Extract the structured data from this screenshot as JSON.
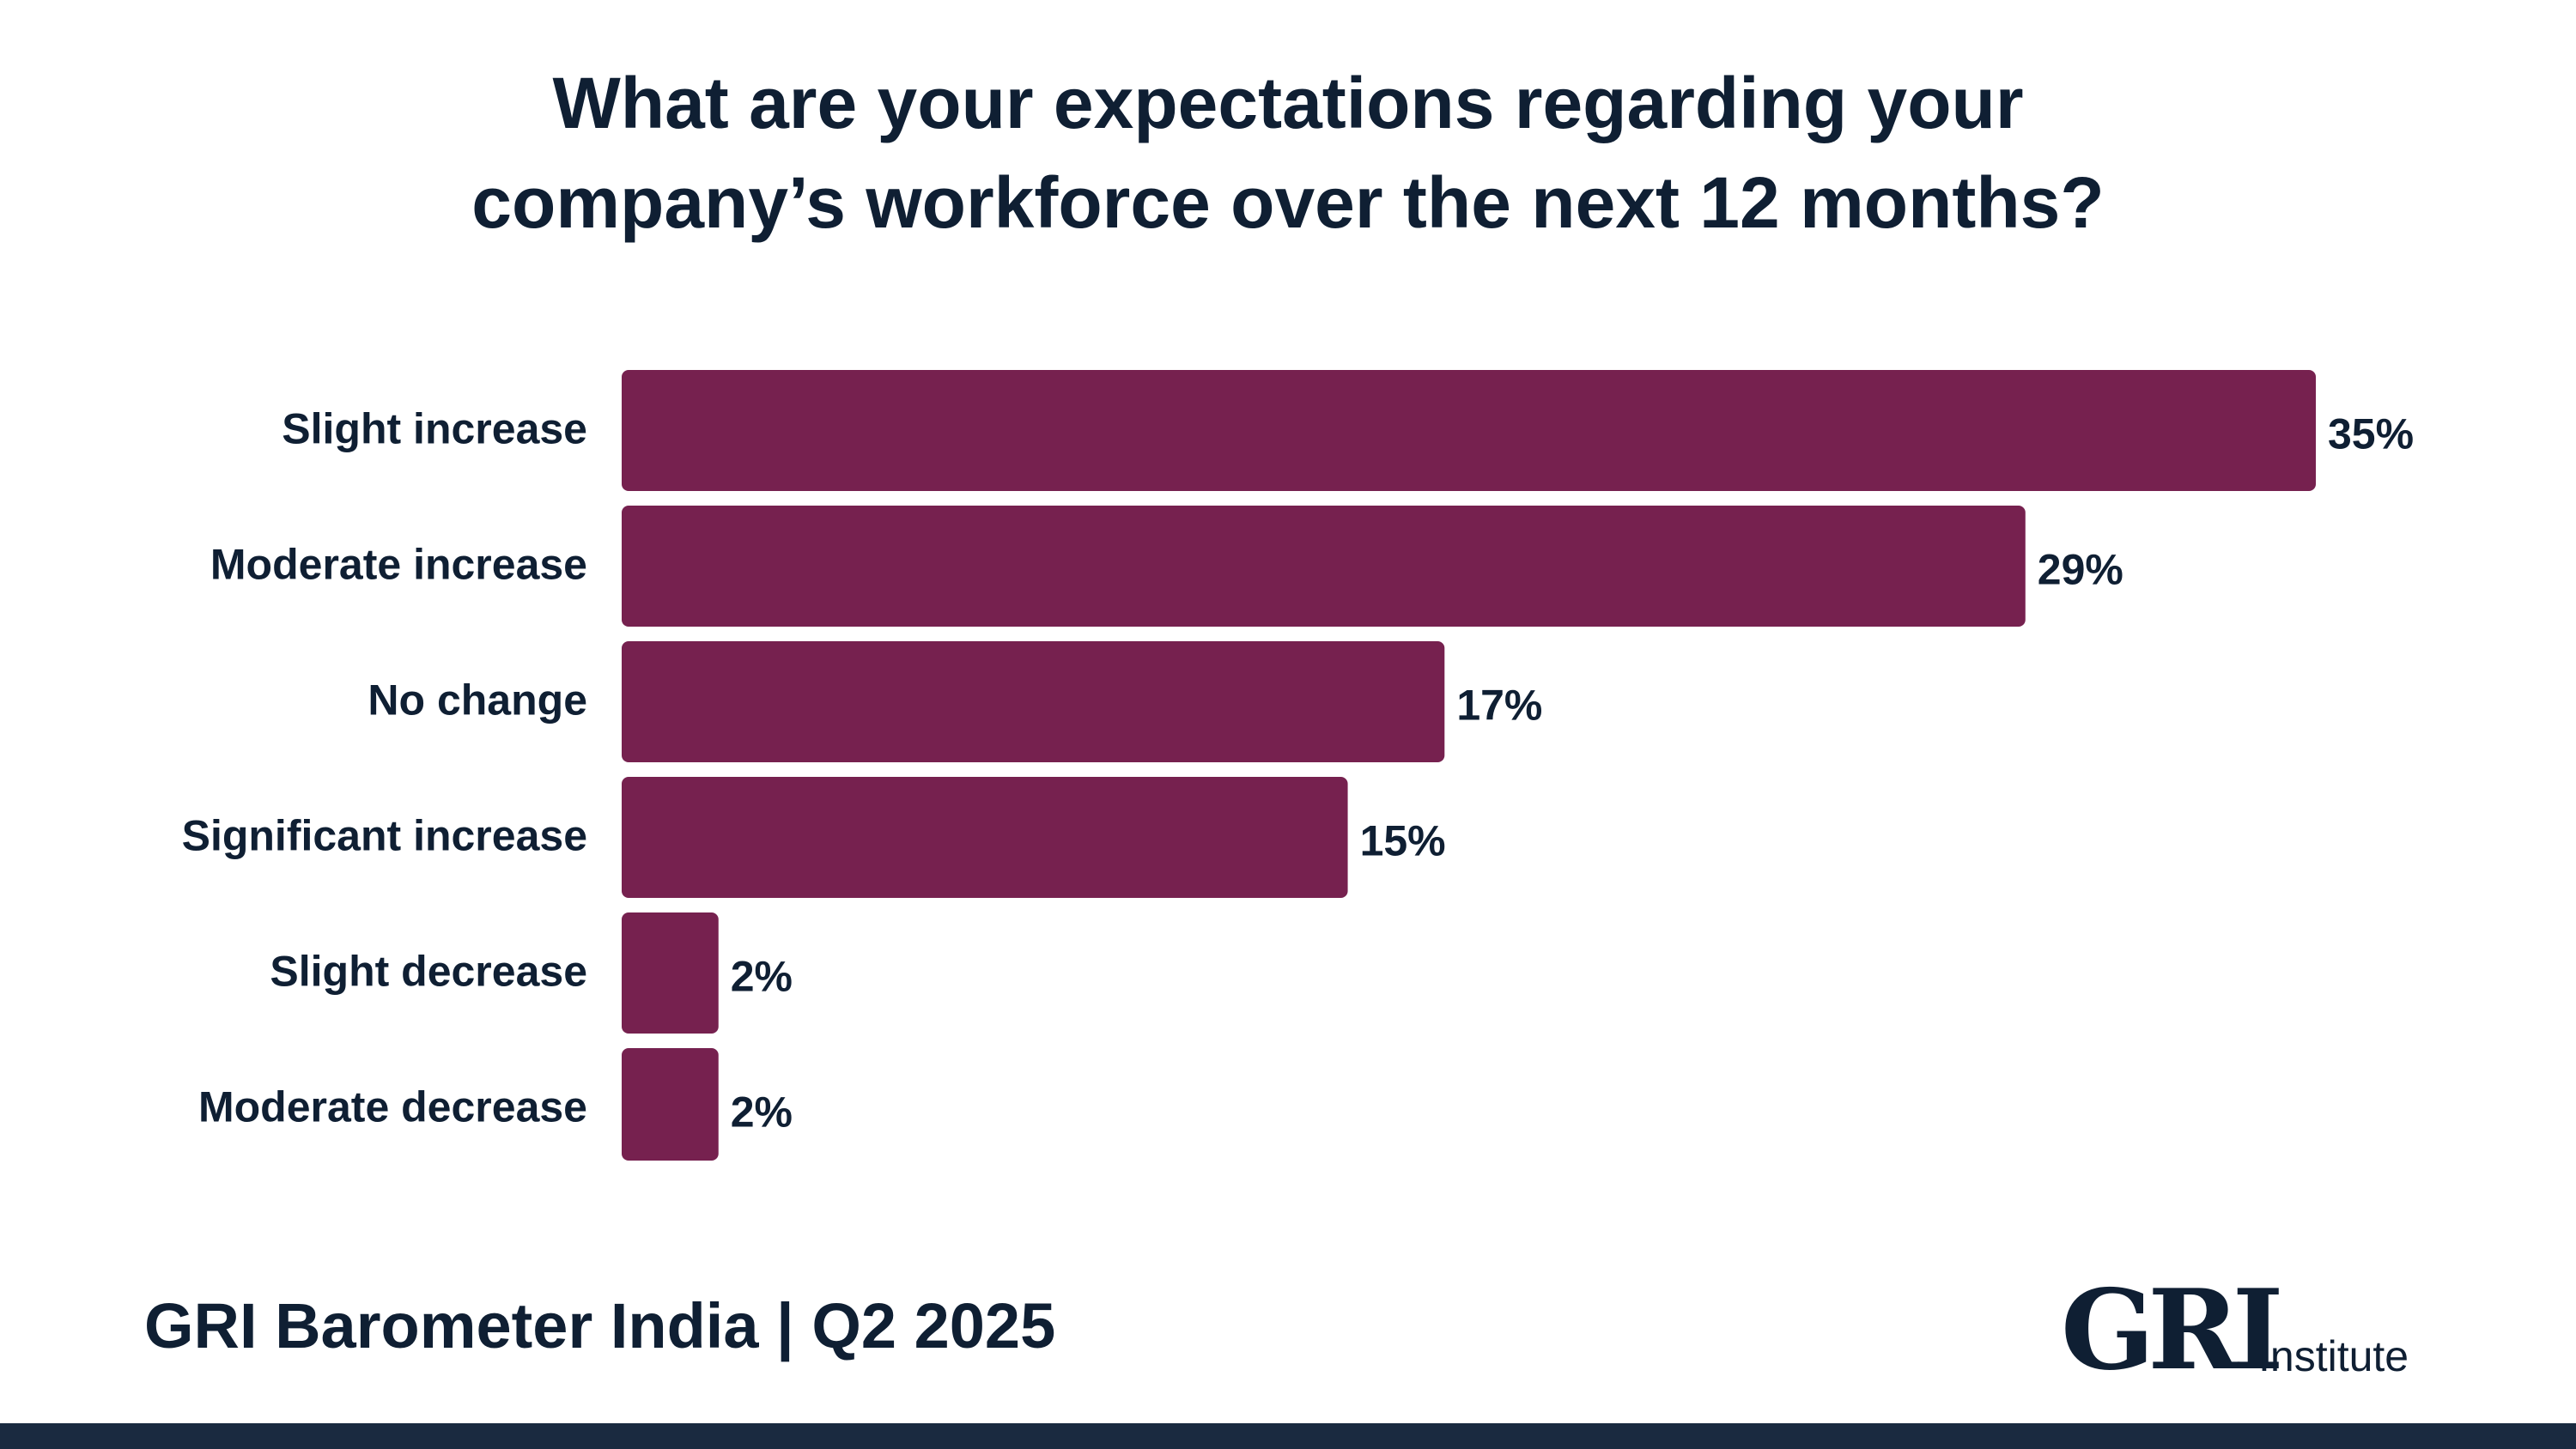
{
  "header": {
    "title_line1": "What are your expectations regarding your",
    "title_line2": "company’s workforce over the next 12 months?"
  },
  "chart_data": {
    "type": "bar",
    "orientation": "horizontal",
    "title": "What are your expectations regarding your company’s workforce over the next 12 months?",
    "categories": [
      "Slight increase",
      "Moderate increase",
      "No change",
      "Significant increase",
      "Slight decrease",
      "Moderate decrease"
    ],
    "values": [
      35,
      29,
      17,
      15,
      2,
      2
    ],
    "value_labels": [
      "35%",
      "29%",
      "17%",
      "15%",
      "2%",
      "2%"
    ],
    "unit": "%",
    "xlim": [
      0,
      35
    ],
    "grid": false,
    "legend": "none",
    "bar_color": "#76214f"
  },
  "footer": {
    "title": "GRI Barometer India | Q2 2025",
    "logo_mark": "GRI",
    "logo_word": "Institute"
  },
  "colors": {
    "text": "#0f1f33",
    "bar": "#76214f",
    "band": "#1a2a40"
  }
}
